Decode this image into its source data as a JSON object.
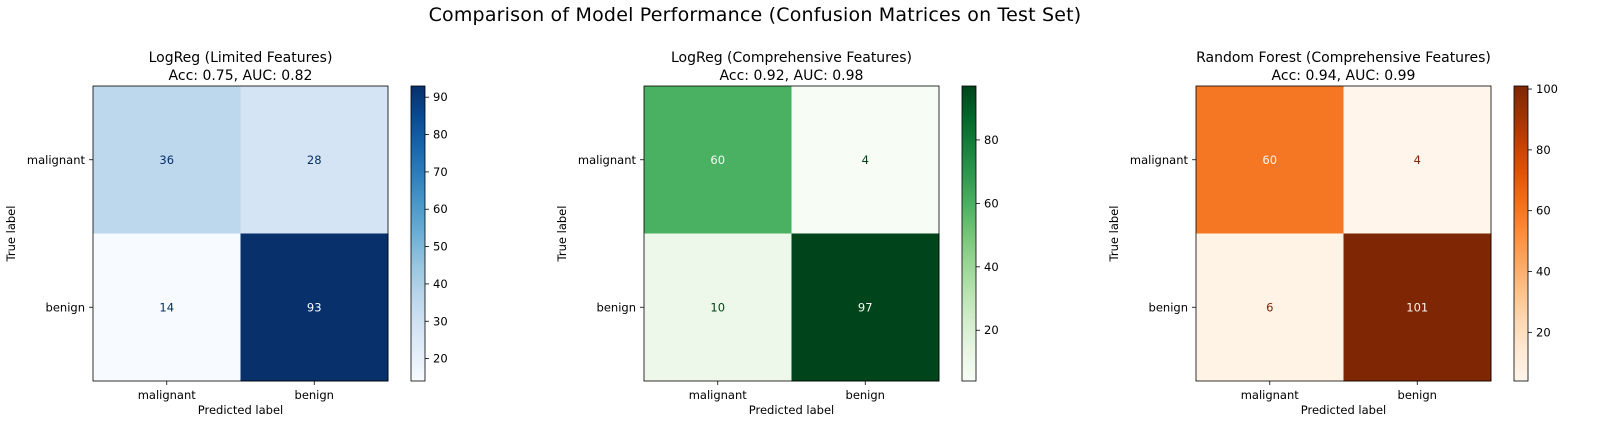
{
  "figure": {
    "title": "Comparison of Model Performance (Confusion Matrices on Test Set)"
  },
  "chart_data": [
    {
      "type": "heatmap",
      "title": "LogReg (Limited Features)",
      "subtitle": "Acc: 0.75, AUC: 0.82",
      "xlabel": "Predicted label",
      "ylabel": "True label",
      "x_categories": [
        "malignant",
        "benign"
      ],
      "y_categories": [
        "malignant",
        "benign"
      ],
      "values": [
        [
          36,
          28
        ],
        [
          14,
          93
        ]
      ],
      "colormap": "Blues",
      "color_low": "#f7fbff",
      "color_high": "#08306b",
      "text_dark": "#08306b",
      "text_light": "#f7fbff",
      "colorbar": {
        "range": [
          14,
          93
        ],
        "ticks": [
          20,
          30,
          40,
          50,
          60,
          70,
          80,
          90
        ]
      },
      "grid": false
    },
    {
      "type": "heatmap",
      "title": "LogReg (Comprehensive Features)",
      "subtitle": "Acc: 0.92, AUC: 0.98",
      "xlabel": "Predicted label",
      "ylabel": "True label",
      "x_categories": [
        "malignant",
        "benign"
      ],
      "y_categories": [
        "malignant",
        "benign"
      ],
      "values": [
        [
          60,
          4
        ],
        [
          10,
          97
        ]
      ],
      "colormap": "Greens",
      "color_low": "#f7fcf5",
      "color_high": "#00441b",
      "text_dark": "#00441b",
      "text_light": "#f7fcf5",
      "colorbar": {
        "range": [
          4,
          97
        ],
        "ticks": [
          20,
          40,
          60,
          80
        ]
      },
      "grid": false
    },
    {
      "type": "heatmap",
      "title": "Random Forest (Comprehensive Features)",
      "subtitle": "Acc: 0.94, AUC: 0.99",
      "xlabel": "Predicted label",
      "ylabel": "True label",
      "x_categories": [
        "malignant",
        "benign"
      ],
      "y_categories": [
        "malignant",
        "benign"
      ],
      "values": [
        [
          60,
          4
        ],
        [
          6,
          101
        ]
      ],
      "colormap": "Oranges",
      "color_low": "#fff5eb",
      "color_high": "#7f2704",
      "text_dark": "#7f2704",
      "text_light": "#fff5eb",
      "colorbar": {
        "range": [
          4,
          101
        ],
        "ticks": [
          20,
          40,
          60,
          80,
          100
        ]
      },
      "grid": false
    }
  ]
}
